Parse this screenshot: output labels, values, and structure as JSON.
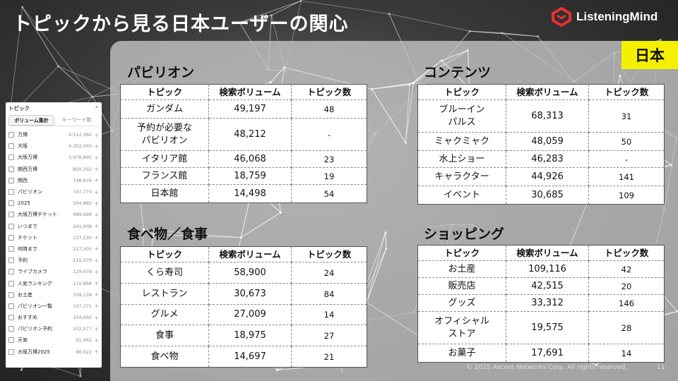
{
  "title": "トピックから見る日本ユーザーの関心",
  "logo": {
    "text": "ListeningMind",
    "accent": "#e8312f"
  },
  "badge": "日本",
  "footer": "© 2025 Ascent Networks Corp. All rights reserved.",
  "page_number": "11",
  "columns": {
    "topic": "トピック",
    "volume": "検索ボリューム",
    "count": "トピック数"
  },
  "tables": {
    "pavilion": {
      "title": "パビリオン",
      "rows": [
        {
          "topic": "ガンダム",
          "volume": "49,197",
          "count": "48"
        },
        {
          "topic": "予約が必要な\nパビリオン",
          "volume": "48,212",
          "count": "-"
        },
        {
          "topic": "イタリア館",
          "volume": "46,068",
          "count": "23"
        },
        {
          "topic": "フランス館",
          "volume": "18,759",
          "count": "19"
        },
        {
          "topic": "日本館",
          "volume": "14,498",
          "count": "54"
        }
      ]
    },
    "contents": {
      "title": "コンテンツ",
      "rows": [
        {
          "topic": "ブルーイン\nパルス",
          "volume": "68,313",
          "count": "31"
        },
        {
          "topic": "ミャクミャク",
          "volume": "48,059",
          "count": "50"
        },
        {
          "topic": "水上ショー",
          "volume": "46,283",
          "count": "-"
        },
        {
          "topic": "キャラクター",
          "volume": "44,926",
          "count": "141"
        },
        {
          "topic": "イベント",
          "volume": "30,685",
          "count": "109"
        }
      ]
    },
    "food": {
      "title": "食べ物／食事",
      "rows": [
        {
          "topic": "くら寿司",
          "volume": "58,900",
          "count": "24"
        },
        {
          "topic": "レストラン",
          "volume": "30,673",
          "count": "84"
        },
        {
          "topic": "グルメ",
          "volume": "27,009",
          "count": "14"
        },
        {
          "topic": "食事",
          "volume": "18,975",
          "count": "27"
        },
        {
          "topic": "食べ物",
          "volume": "14,697",
          "count": "21"
        }
      ]
    },
    "shopping": {
      "title": "ショッピング",
      "rows": [
        {
          "topic": "お土産",
          "volume": "109,116",
          "count": "42"
        },
        {
          "topic": "販売店",
          "volume": "42,515",
          "count": "20"
        },
        {
          "topic": "グッズ",
          "volume": "33,312",
          "count": "146"
        },
        {
          "topic": "オフィシャル\nストア",
          "volume": "19,575",
          "count": "28"
        },
        {
          "topic": "お菓子",
          "volume": "17,691",
          "count": "14"
        }
      ]
    }
  },
  "sidebar": {
    "header": "トピック",
    "collapse_icon": "chevron-up-icon",
    "tabs": [
      "ボリューム集計",
      "キーワード数"
    ],
    "items": [
      {
        "keyword": "万博",
        "volume": "4,512,360"
      },
      {
        "keyword": "大阪",
        "volume": "4,352,040"
      },
      {
        "keyword": "大阪万博",
        "volume": "3,978,895"
      },
      {
        "keyword": "関西万博",
        "volume": "850,292"
      },
      {
        "keyword": "関西",
        "volume": "748,976"
      },
      {
        "keyword": "パビリオン",
        "volume": "747,773"
      },
      {
        "keyword": "2025",
        "volume": "504,882"
      },
      {
        "keyword": "大阪万博チケット",
        "volume": "489,998"
      },
      {
        "keyword": "いつまで",
        "volume": "241,908"
      },
      {
        "keyword": "チケット",
        "volume": "237,230"
      },
      {
        "keyword": "何時まで",
        "volume": "217,300"
      },
      {
        "keyword": "予約",
        "volume": "210,279"
      },
      {
        "keyword": "ライブカメラ",
        "volume": "129,078"
      },
      {
        "keyword": "人気ランキング",
        "volume": "110,868"
      },
      {
        "keyword": "お土産",
        "volume": "109,139"
      },
      {
        "keyword": "パビリオン一覧",
        "volume": "107,371"
      },
      {
        "keyword": "おすすめ",
        "volume": "104,660"
      },
      {
        "keyword": "パビリオン予約",
        "volume": "102,277"
      },
      {
        "keyword": "天気",
        "volume": "91,462"
      },
      {
        "keyword": "大阪万博2025",
        "volume": "86,922"
      }
    ]
  }
}
